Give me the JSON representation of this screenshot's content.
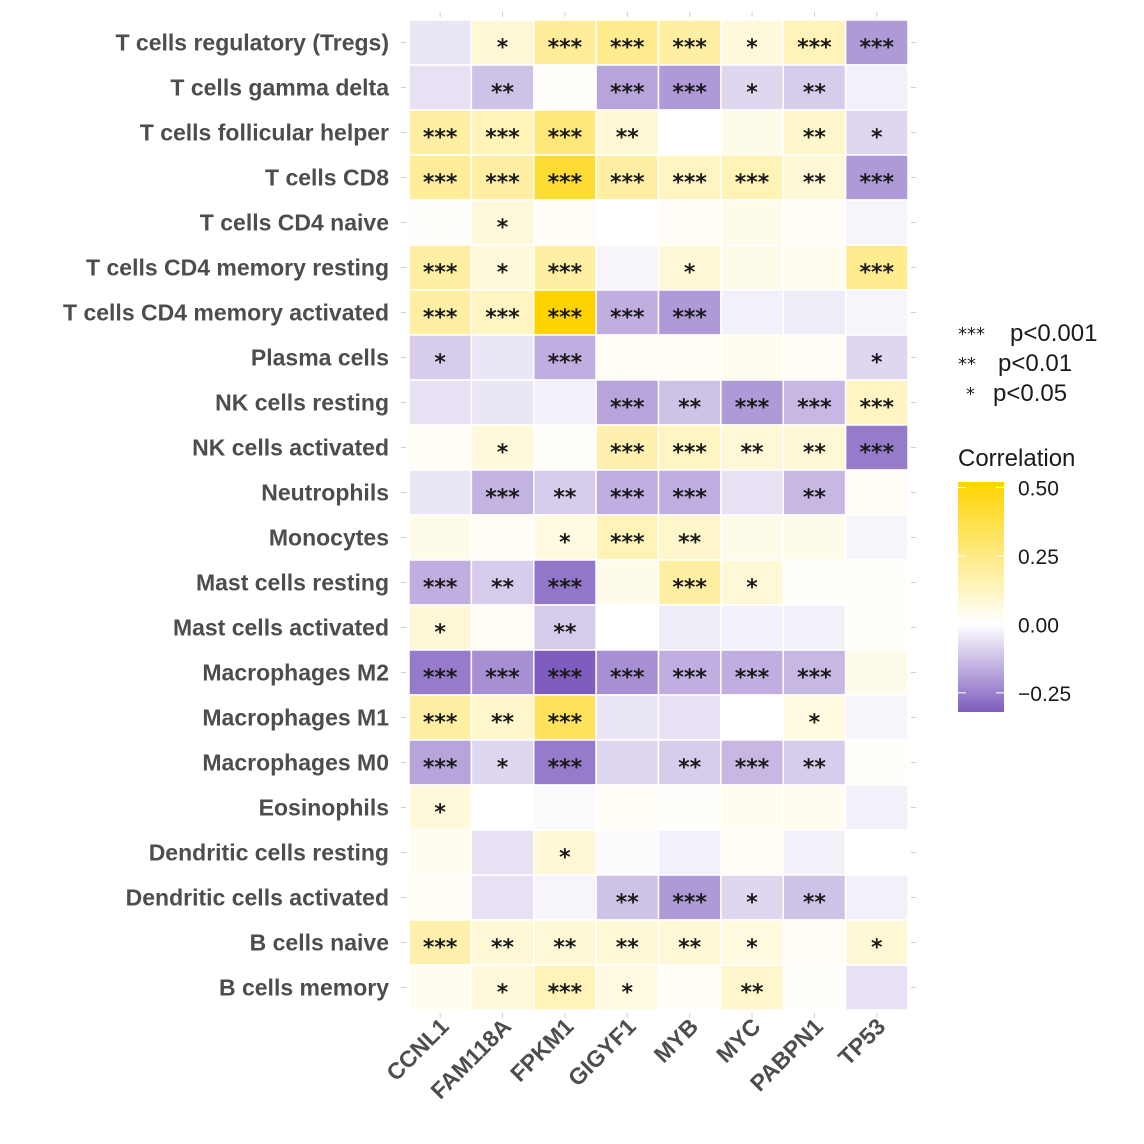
{
  "chart_data": {
    "type": "heatmap",
    "title": "",
    "xlabel": "",
    "ylabel": "",
    "x_categories": [
      "CCNL1",
      "FAM118A",
      "FPKM1",
      "GIGYF1",
      "MYB",
      "MYC",
      "PABPN1",
      "TP53"
    ],
    "y_categories": [
      "T cells regulatory (Tregs)",
      "T cells gamma delta",
      "T cells follicular helper",
      "T cells CD8",
      "T cells CD4 naive",
      "T cells CD4 memory resting",
      "T cells CD4 memory activated",
      "Plasma cells",
      "NK cells resting",
      "NK cells activated",
      "Neutrophils",
      "Monocytes",
      "Mast cells resting",
      "Mast cells activated",
      "Macrophages M2",
      "Macrophages M1",
      "Macrophages M0",
      "Eosinophils",
      "Dendritic cells resting",
      "Dendritic cells activated",
      "B cells naive",
      "B cells memory"
    ],
    "values": [
      [
        -0.05,
        0.08,
        0.2,
        0.22,
        0.18,
        0.07,
        0.14,
        -0.2
      ],
      [
        -0.06,
        -0.12,
        0.01,
        -0.18,
        -0.2,
        -0.08,
        -0.1,
        -0.03
      ],
      [
        0.18,
        0.14,
        0.26,
        0.08,
        0.0,
        0.04,
        0.1,
        -0.08
      ],
      [
        0.2,
        0.18,
        0.4,
        0.18,
        0.12,
        0.14,
        0.08,
        -0.2
      ],
      [
        0.01,
        0.07,
        0.02,
        0.0,
        0.02,
        0.04,
        0.02,
        -0.02
      ],
      [
        0.18,
        0.07,
        0.18,
        -0.02,
        0.08,
        0.04,
        0.03,
        0.22
      ],
      [
        0.18,
        0.12,
        0.5,
        -0.16,
        -0.2,
        -0.03,
        -0.04,
        -0.02
      ],
      [
        -0.1,
        -0.05,
        -0.16,
        0.02,
        0.02,
        0.03,
        0.02,
        -0.08
      ],
      [
        -0.06,
        -0.05,
        -0.03,
        -0.18,
        -0.12,
        -0.2,
        -0.14,
        0.12
      ],
      [
        0.02,
        0.07,
        0.01,
        0.16,
        0.12,
        0.08,
        0.08,
        -0.26
      ],
      [
        -0.05,
        -0.15,
        -0.1,
        -0.16,
        -0.16,
        -0.06,
        -0.14,
        0.02
      ],
      [
        0.04,
        0.02,
        0.06,
        0.14,
        0.1,
        0.04,
        0.04,
        -0.02
      ],
      [
        -0.16,
        -0.1,
        -0.27,
        0.04,
        0.18,
        0.08,
        0.01,
        0.01
      ],
      [
        0.08,
        0.02,
        -0.1,
        0.0,
        -0.04,
        -0.03,
        -0.03,
        0.01
      ],
      [
        -0.26,
        -0.22,
        -0.32,
        -0.22,
        -0.16,
        -0.16,
        -0.14,
        0.04
      ],
      [
        0.18,
        0.1,
        0.32,
        -0.05,
        -0.06,
        0.0,
        0.06,
        -0.02
      ],
      [
        -0.18,
        -0.08,
        -0.26,
        -0.08,
        -0.1,
        -0.14,
        -0.1,
        0.01
      ],
      [
        0.07,
        0.0,
        -0.01,
        0.02,
        0.01,
        0.03,
        0.03,
        -0.03
      ],
      [
        0.03,
        -0.06,
        0.08,
        -0.01,
        -0.03,
        0.02,
        -0.03,
        0.0
      ],
      [
        0.02,
        -0.06,
        -0.02,
        -0.12,
        -0.2,
        -0.08,
        -0.12,
        -0.03
      ],
      [
        0.16,
        0.08,
        0.08,
        0.08,
        0.08,
        0.06,
        0.02,
        0.08
      ],
      [
        0.03,
        0.07,
        0.14,
        0.06,
        0.02,
        0.1,
        0.01,
        -0.06
      ]
    ],
    "significance": [
      [
        "",
        "*",
        "***",
        "***",
        "***",
        "*",
        "***",
        "***"
      ],
      [
        "",
        "**",
        "",
        "***",
        "***",
        "*",
        "**",
        ""
      ],
      [
        "***",
        "***",
        "***",
        "**",
        "",
        "",
        "**",
        "*"
      ],
      [
        "***",
        "***",
        "***",
        "***",
        "***",
        "***",
        "**",
        "***"
      ],
      [
        "",
        "*",
        "",
        "",
        "",
        "",
        "",
        ""
      ],
      [
        "***",
        "*",
        "***",
        "",
        "*",
        "",
        "",
        "***"
      ],
      [
        "***",
        "***",
        "***",
        "***",
        "***",
        "",
        "",
        ""
      ],
      [
        "*",
        "",
        "***",
        "",
        "",
        "",
        "",
        "*"
      ],
      [
        "",
        "",
        "",
        "***",
        "**",
        "***",
        "***",
        "***"
      ],
      [
        "",
        "*",
        "",
        "***",
        "***",
        "**",
        "**",
        "***"
      ],
      [
        "",
        "***",
        "**",
        "***",
        "***",
        "",
        "**",
        ""
      ],
      [
        "",
        "",
        "*",
        "***",
        "**",
        "",
        "",
        ""
      ],
      [
        "***",
        "**",
        "***",
        "",
        "***",
        "*",
        "",
        ""
      ],
      [
        "*",
        "",
        "**",
        "",
        "",
        "",
        "",
        ""
      ],
      [
        "***",
        "***",
        "***",
        "***",
        "***",
        "***",
        "***",
        ""
      ],
      [
        "***",
        "**",
        "***",
        "",
        "",
        "",
        "*",
        ""
      ],
      [
        "***",
        "*",
        "***",
        "",
        "**",
        "***",
        "**",
        ""
      ],
      [
        "*",
        "",
        "",
        "",
        "",
        "",
        "",
        ""
      ],
      [
        "",
        "",
        "*",
        "",
        "",
        "",
        "",
        ""
      ],
      [
        "",
        "",
        "",
        "**",
        "***",
        "*",
        "**",
        ""
      ],
      [
        "***",
        "**",
        "**",
        "**",
        "**",
        "*",
        "",
        "*"
      ],
      [
        "",
        "*",
        "***",
        "*",
        "",
        "**",
        "",
        ""
      ]
    ],
    "legend": {
      "significance": [
        {
          "stars": "***",
          "label": "p<0.001"
        },
        {
          "stars": "**",
          "label": "p<0.01"
        },
        {
          "stars": "*",
          "label": "p<0.05"
        }
      ],
      "colorbar_title": "Correlation",
      "colorbar_ticks": [
        "0.50",
        "0.25",
        "0.00",
        "−0.25"
      ],
      "colorbar_tick_values": [
        0.5,
        0.25,
        0.0,
        -0.25
      ],
      "colorbar_range": [
        -0.32,
        0.52
      ],
      "placement": "right"
    },
    "colors": {
      "high": "#FFD300",
      "mid": "#FFFFFF",
      "low": "#7E5DBF"
    },
    "color_range": [
      -0.32,
      0.5
    ],
    "grid": false
  }
}
